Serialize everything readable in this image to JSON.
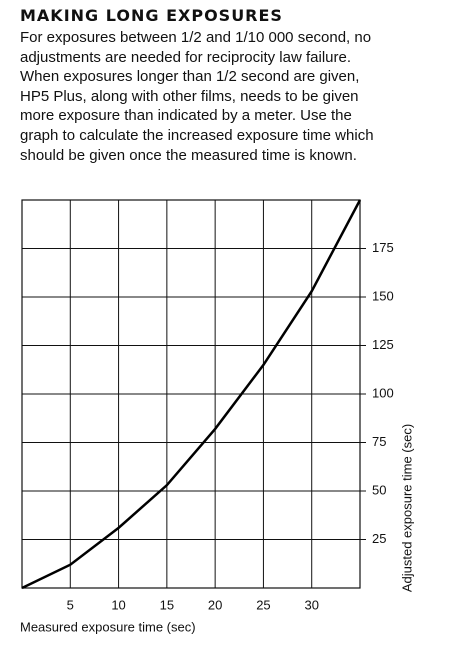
{
  "header": {
    "title": "MAKING LONG EXPOSURES"
  },
  "paragraph": {
    "lines": [
      "For exposures between 1/2 and 1/10 000 second, no",
      "adjustments are needed for reciprocity law failure.",
      "When exposures longer than 1/2 second are given,",
      "HP5 Plus, along with other films, needs to be given",
      "more exposure than indicated by a meter. Use the",
      "graph to calculate the increased exposure time which",
      "should be given once the measured time is known."
    ]
  },
  "chart_data": {
    "type": "line",
    "x_label": "Measured exposure time (sec)",
    "y_label": "Adjusted exposure time (sec)",
    "x": [
      0,
      5,
      10,
      15,
      20,
      25,
      30,
      35
    ],
    "values": [
      0,
      12,
      31,
      53,
      82,
      115,
      153,
      200
    ],
    "color": "#000000",
    "xlim": [
      0,
      35
    ],
    "ylim": [
      0,
      200
    ],
    "xticks": [
      5,
      10,
      15,
      20,
      25,
      30
    ],
    "yticks": [
      25,
      50,
      75,
      100,
      125,
      150,
      175
    ],
    "grid": true
  }
}
